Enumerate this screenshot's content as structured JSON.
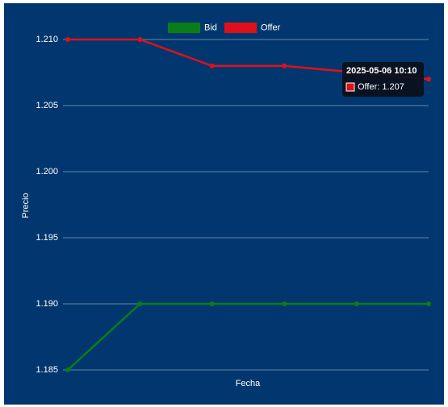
{
  "chart_data": {
    "type": "line",
    "x_label": "Fecha",
    "y_label": "Precio",
    "categories": [
      null,
      null,
      null,
      null,
      null,
      "2025-05-06 10:10"
    ],
    "series": [
      {
        "name": "Bid",
        "color": "#0a7d1a",
        "values": [
          1.185,
          1.19,
          1.19,
          1.19,
          1.19,
          1.19
        ]
      },
      {
        "name": "Offer",
        "color": "#e0101a",
        "values": [
          1.21,
          1.21,
          1.208,
          1.208,
          1.2075,
          1.207
        ]
      }
    ],
    "ylim": [
      1.185,
      1.21
    ],
    "yticks": [
      {
        "value": 1.185,
        "label": "1.185"
      },
      {
        "value": 1.19,
        "label": "1.190"
      },
      {
        "value": 1.195,
        "label": "1.195"
      },
      {
        "value": 1.2,
        "label": "1.200"
      },
      {
        "value": 1.205,
        "label": "1.205"
      },
      {
        "value": 1.21,
        "label": "1.210"
      }
    ],
    "grid": true,
    "legend": "top",
    "tooltip_label": "Offer: 1.207"
  }
}
